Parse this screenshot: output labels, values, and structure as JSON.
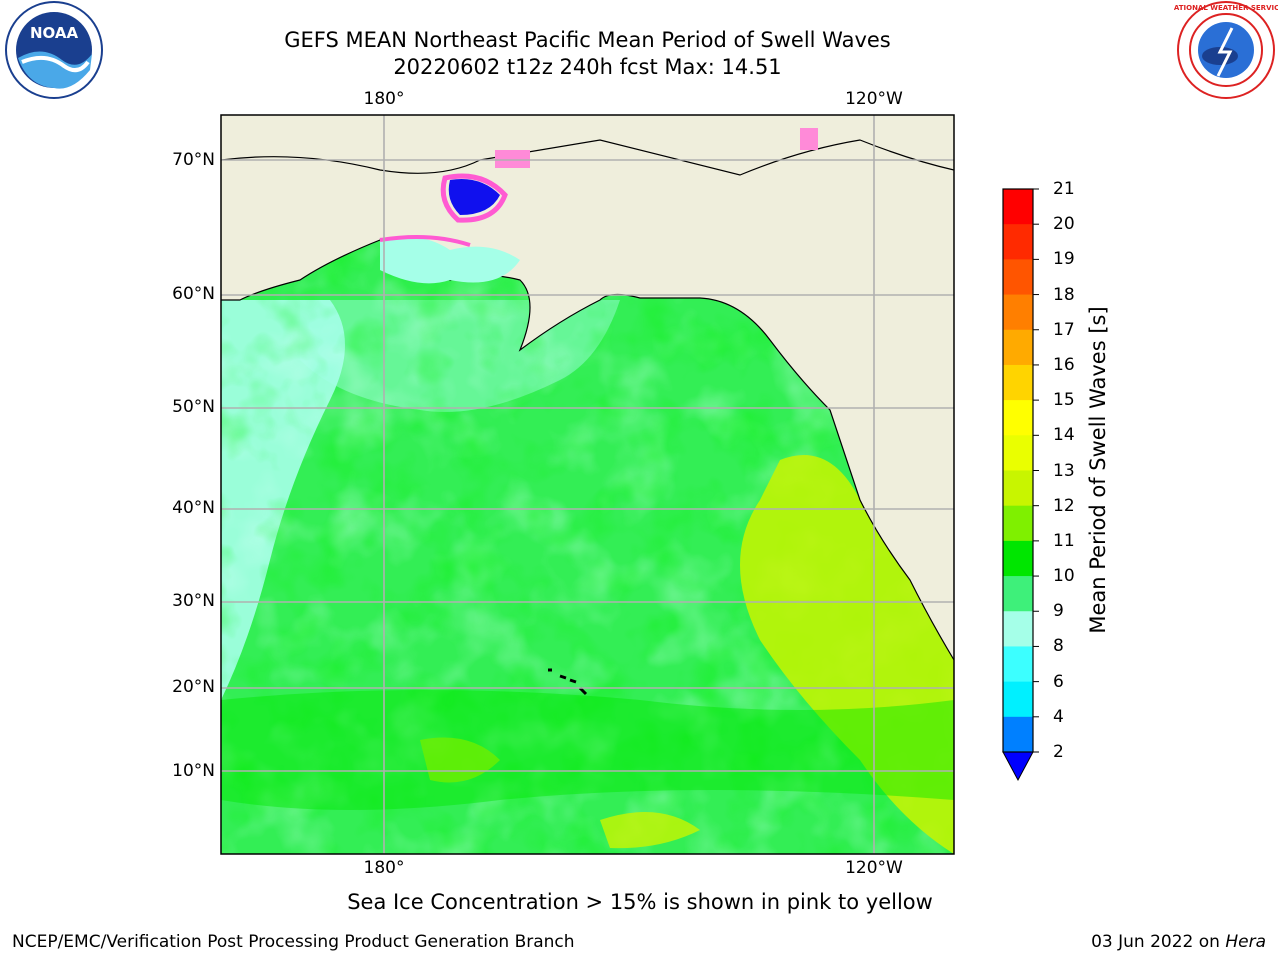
{
  "title": {
    "line1": "GEFS MEAN Northeast Pacific Mean Period of Swell Waves",
    "line2": "20220602 t12z 240h fcst   Max: 14.51"
  },
  "map": {
    "lat_labels": [
      "70°N",
      "60°N",
      "50°N",
      "40°N",
      "30°N",
      "20°N",
      "10°N"
    ],
    "lon_labels_top": [
      "180°",
      "120°W"
    ],
    "lon_labels_bottom": [
      "180°",
      "120°W"
    ],
    "colors": {
      "land": "#efeedc",
      "ocean_base": "#33ee55",
      "coast": "#000000",
      "grid": "#b0b0b0"
    }
  },
  "colorbar": {
    "label": "Mean Period of Swell Waves [s]",
    "ticks": [
      "21",
      "20",
      "19",
      "18",
      "17",
      "16",
      "15",
      "14",
      "13",
      "12",
      "11",
      "10",
      "9",
      "8",
      "6",
      "4",
      "2"
    ],
    "colors": [
      "#ff0000",
      "#ff2a00",
      "#ff5500",
      "#ff7f00",
      "#ffaa00",
      "#ffd400",
      "#ffff00",
      "#eaff00",
      "#c8f500",
      "#7ff000",
      "#00e600",
      "#3ef07a",
      "#a5ffe8",
      "#3cffff",
      "#00f0ff",
      "#0080ff",
      "#0000ff"
    ]
  },
  "caption": "Sea Ice Concentration > 15% is shown in pink to yellow",
  "footer": {
    "left": "NCEP/EMC/Verification Post Processing Product Generation Branch",
    "right_date": "03 Jun 2022 on",
    "right_host": "Hera"
  },
  "logos": {
    "left": "noaa-logo",
    "left_text": "NOAA",
    "right": "nws-logo",
    "right_text": "NATIONAL WEATHER SERVICE"
  }
}
